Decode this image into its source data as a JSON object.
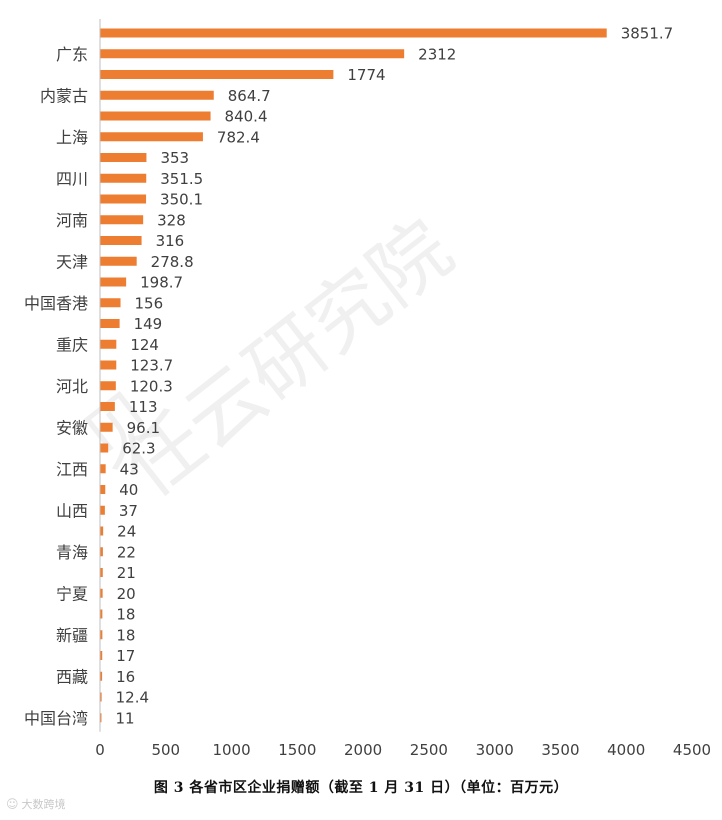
{
  "caption": "图 3  各省市区企业捐赠额（截至 1 月 31 日）（单位：百万元）",
  "watermark": {
    "diagonal_text": "任云研究院",
    "diagonal_glyph": "贝",
    "footer_text": "大数跨境",
    "footer_icon": "weibo-like-icon"
  },
  "colors": {
    "bar": "#ED7D31",
    "axis": "#BFBFBF",
    "text": "#404040"
  },
  "chart_data": {
    "type": "bar",
    "orientation": "horizontal",
    "title": "",
    "xlabel": "",
    "ylabel": "",
    "xlim": [
      0,
      4500
    ],
    "xticks": [
      0,
      500,
      1000,
      1500,
      2000,
      2500,
      3000,
      3500,
      4000,
      4500
    ],
    "grid": false,
    "legend": "none",
    "categories": [
      "",
      "广东",
      "",
      "内蒙古",
      "",
      "上海",
      "",
      "四川",
      "",
      "河南",
      "",
      "天津",
      "",
      "中国香港",
      "",
      "重庆",
      "",
      "河北",
      "",
      "安徽",
      "",
      "江西",
      "",
      "山西",
      "",
      "青海",
      "",
      "宁夏",
      "",
      "新疆",
      "",
      "西藏",
      "",
      "中国台湾"
    ],
    "values": [
      3851.7,
      2312,
      1774,
      864.7,
      840.4,
      782.4,
      353,
      351.5,
      350.1,
      328,
      316,
      278.8,
      198.7,
      156,
      149,
      124,
      123.7,
      120.3,
      113,
      96.1,
      62.3,
      43,
      40,
      37,
      24,
      22,
      21,
      20,
      18,
      18,
      17,
      16,
      12.4,
      11
    ],
    "data_labels": [
      "3851.7",
      "2312",
      "1774",
      "864.7",
      "840.4",
      "782.4",
      "353",
      "351.5",
      "350.1",
      "328",
      "316",
      "278.8",
      "198.7",
      "156",
      "149",
      "124",
      "123.7",
      "120.3",
      "113",
      "96.1",
      "62.3",
      "43",
      "40",
      "37",
      "24",
      "22",
      "21",
      "20",
      "18",
      "18",
      "17",
      "16",
      "12.4",
      "11"
    ]
  }
}
